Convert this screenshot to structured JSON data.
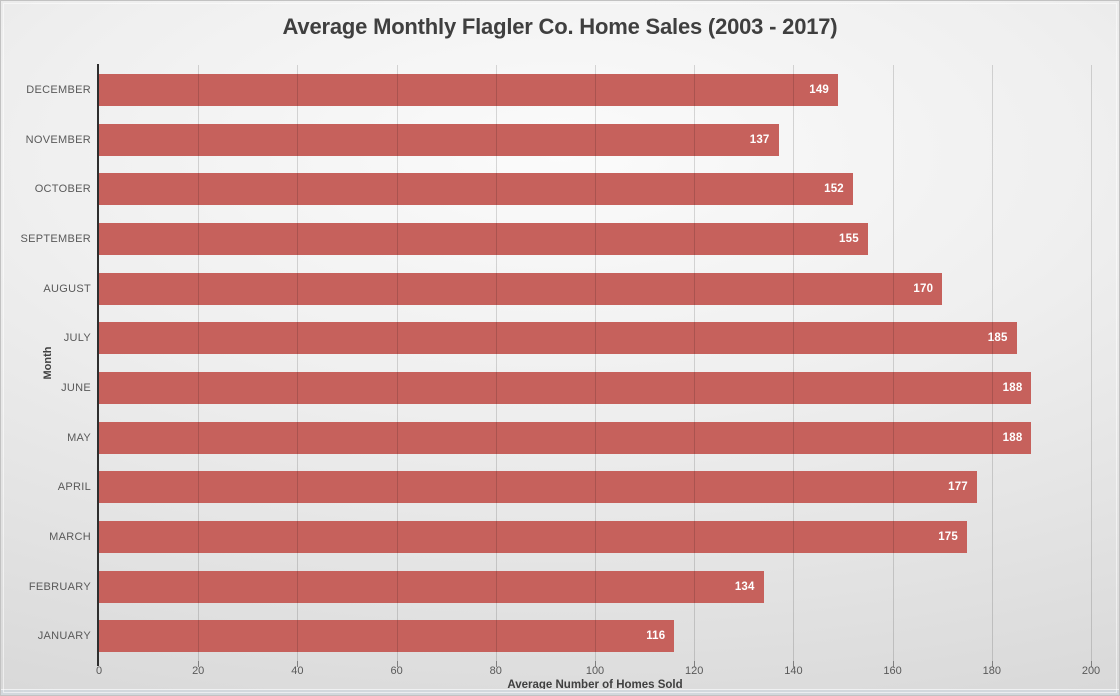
{
  "chart_data": {
    "type": "bar",
    "orientation": "horizontal",
    "title": "Average Monthly Flagler Co. Home Sales (2003 - 2017)",
    "xlabel": "Average Number of Homes Sold",
    "ylabel": "Month",
    "categories": [
      "DECEMBER",
      "NOVEMBER",
      "OCTOBER",
      "SEPTEMBER",
      "AUGUST",
      "JULY",
      "JUNE",
      "MAY",
      "APRIL",
      "MARCH",
      "FEBRUARY",
      "JANUARY"
    ],
    "values": [
      149,
      137,
      152,
      155,
      170,
      185,
      188,
      188,
      177,
      175,
      134,
      116
    ],
    "xlim": [
      0,
      200
    ],
    "x_ticks": [
      0,
      20,
      40,
      60,
      80,
      100,
      120,
      140,
      160,
      180,
      200
    ],
    "grid": true,
    "gridlines_in_front": true,
    "legend": false,
    "value_labels": "inside-end",
    "colors": {
      "bar": "#C6615C",
      "value_label": "#FFFFFF",
      "axis_text": "#595959",
      "axis_title": "#404040",
      "title": "#3F3F3F",
      "axis_line": "#2E2E2E",
      "gridline": "rgba(0,0,0,0.14)"
    }
  }
}
